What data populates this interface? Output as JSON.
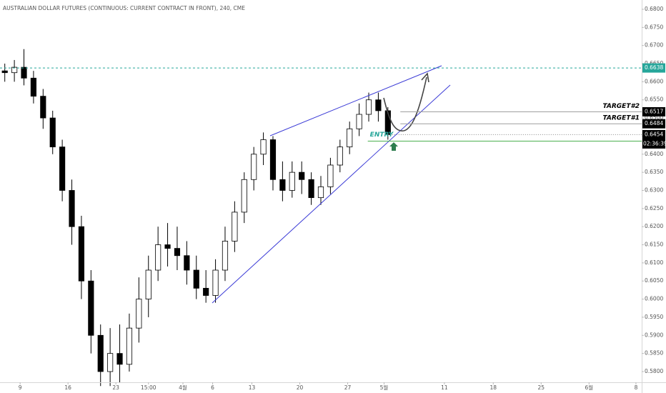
{
  "chart_data": {
    "type": "candlestick",
    "title": "AUSTRALIAN DOLLAR FUTURES (CONTINUOUS: CURRENT CONTRACT IN FRONT), 240, CME",
    "x": [
      0.5,
      1.5,
      2.5,
      3.5,
      4.5,
      5.5,
      6.5,
      7.5,
      8.5,
      9.5,
      10.5,
      11.5,
      12.5,
      13.5,
      14.5,
      15.5,
      16.5,
      17.5,
      18.5,
      19.5,
      20.5,
      21.5,
      22.5,
      23.5,
      24.5,
      25.5,
      26.5,
      27.5,
      28.5,
      29.5,
      30.5,
      31.5,
      32.5,
      33.5,
      34.5,
      35.5,
      36.5,
      37.5,
      38.5,
      39.5,
      40.5
    ],
    "open": [
      0.663,
      0.6625,
      0.664,
      0.661,
      0.656,
      0.65,
      0.642,
      0.63,
      0.62,
      0.605,
      0.59,
      0.58,
      0.585,
      0.582,
      0.592,
      0.6,
      0.608,
      0.615,
      0.614,
      0.612,
      0.608,
      0.603,
      0.601,
      0.608,
      0.616,
      0.624,
      0.633,
      0.64,
      0.644,
      0.633,
      0.63,
      0.635,
      0.633,
      0.628,
      0.631,
      0.637,
      0.642,
      0.647,
      0.651,
      0.655,
      0.652
    ],
    "high": [
      0.665,
      0.666,
      0.669,
      0.663,
      0.658,
      0.652,
      0.644,
      0.633,
      0.623,
      0.608,
      0.593,
      0.592,
      0.593,
      0.596,
      0.606,
      0.612,
      0.62,
      0.621,
      0.62,
      0.616,
      0.612,
      0.608,
      0.611,
      0.62,
      0.627,
      0.635,
      0.642,
      0.646,
      0.645,
      0.638,
      0.638,
      0.638,
      0.635,
      0.634,
      0.639,
      0.644,
      0.649,
      0.654,
      0.657,
      0.657,
      0.653
    ],
    "low": [
      0.66,
      0.66,
      0.659,
      0.654,
      0.647,
      0.64,
      0.627,
      0.615,
      0.6,
      0.585,
      0.576,
      0.576,
      0.577,
      0.58,
      0.588,
      0.595,
      0.605,
      0.609,
      0.608,
      0.604,
      0.6,
      0.599,
      0.599,
      0.605,
      0.613,
      0.621,
      0.63,
      0.637,
      0.63,
      0.627,
      0.628,
      0.629,
      0.626,
      0.626,
      0.629,
      0.635,
      0.64,
      0.645,
      0.649,
      0.649,
      0.644
    ],
    "close": [
      0.6625,
      0.664,
      0.661,
      0.656,
      0.65,
      0.642,
      0.63,
      0.62,
      0.605,
      0.59,
      0.58,
      0.585,
      0.582,
      0.592,
      0.6,
      0.608,
      0.615,
      0.614,
      0.612,
      0.608,
      0.603,
      0.601,
      0.608,
      0.616,
      0.624,
      0.633,
      0.64,
      0.644,
      0.633,
      0.63,
      0.635,
      0.633,
      0.628,
      0.631,
      0.637,
      0.642,
      0.647,
      0.651,
      0.655,
      0.652,
      0.6454
    ],
    "up_color": "#ffffff",
    "down_color": "#000000",
    "xlim": [
      0,
      67
    ],
    "xticks": [
      {
        "value": 2.1,
        "label": "9"
      },
      {
        "value": 7.1,
        "label": "16"
      },
      {
        "value": 12.1,
        "label": "23"
      },
      {
        "value": 15.5,
        "label": "15:00"
      },
      {
        "value": 19.1,
        "label": "4월"
      },
      {
        "value": 22.2,
        "label": "6"
      },
      {
        "value": 26.3,
        "label": "13"
      },
      {
        "value": 31.3,
        "label": "20"
      },
      {
        "value": 36.3,
        "label": "27"
      },
      {
        "value": 40.1,
        "label": "5월"
      },
      {
        "value": 46.4,
        "label": "11"
      },
      {
        "value": 51.5,
        "label": "18"
      },
      {
        "value": 56.5,
        "label": "25"
      },
      {
        "value": 61.5,
        "label": "6월"
      },
      {
        "value": 66.4,
        "label": "8"
      }
    ],
    "ylim": [
      0.57704,
      0.68256
    ],
    "yticks": [
      {
        "value": 0.58,
        "label": "0.5800"
      },
      {
        "value": 0.585,
        "label": "0.5850"
      },
      {
        "value": 0.59,
        "label": "0.5900"
      },
      {
        "value": 0.595,
        "label": "0.5950"
      },
      {
        "value": 0.6,
        "label": "0.6000"
      },
      {
        "value": 0.605,
        "label": "0.6050"
      },
      {
        "value": 0.61,
        "label": "0.6100"
      },
      {
        "value": 0.615,
        "label": "0.6150"
      },
      {
        "value": 0.62,
        "label": "0.6200"
      },
      {
        "value": 0.625,
        "label": "0.6250"
      },
      {
        "value": 0.63,
        "label": "0.6300"
      },
      {
        "value": 0.635,
        "label": "0.6350"
      },
      {
        "value": 0.64,
        "label": "0.6400"
      },
      {
        "value": 0.645,
        "label": "0.6450"
      },
      {
        "value": 0.65,
        "label": "0.6500"
      },
      {
        "value": 0.655,
        "label": "0.6550"
      },
      {
        "value": 0.66,
        "label": "0.6600"
      },
      {
        "value": 0.665,
        "label": "0.6650"
      },
      {
        "value": 0.67,
        "label": "0.6700"
      },
      {
        "value": 0.675,
        "label": "0.6750"
      },
      {
        "value": 0.68,
        "label": "0.6800"
      }
    ],
    "levels": [
      {
        "value": 0.6638,
        "color": "#26a69a",
        "dashed": true,
        "from": 0
      },
      {
        "value": 0.6517,
        "color": "#9e9e9e",
        "from": 41.8,
        "text": "TARGET#2",
        "label_color": "#000000"
      },
      {
        "value": 0.6484,
        "color": "#9e9e9e",
        "from": 41.8,
        "text": "TARGET#1",
        "label_color": "#000000"
      },
      {
        "value": 0.6436,
        "color": "#4caf50",
        "from": 38.4,
        "text": "ENTRY",
        "label_color": "#4caf50"
      }
    ],
    "last_price": 0.6454,
    "countdown": "02:36:39"
  }
}
